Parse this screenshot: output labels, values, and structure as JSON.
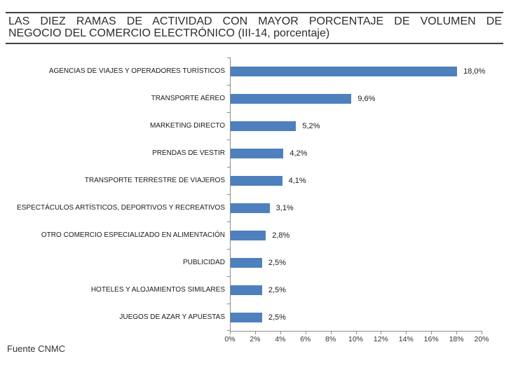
{
  "title": {
    "line1": "LAS DIEZ RAMAS DE ACTIVIDAD CON MAYOR PORCENTAJE DE VOLUMEN DE",
    "line2": "NEGOCIO DEL COMERCIO ELECTRÓNICO (III-14, porcentaje)"
  },
  "source": "Fuente CNMC",
  "chart_data": {
    "type": "bar",
    "orientation": "horizontal",
    "title": "LAS DIEZ RAMAS DE ACTIVIDAD CON MAYOR PORCENTAJE DE VOLUMEN DE NEGOCIO DEL COMERCIO ELECTRÓNICO (III-14, porcentaje)",
    "categories": [
      "AGENCIAS DE VIAJES Y OPERADORES TURÍSTICOS",
      "TRANSPORTE AÉREO",
      "MARKETING DIRECTO",
      "PRENDAS DE VESTIR",
      "TRANSPORTE TERRESTRE DE VIAJEROS",
      "ESPECTÁCULOS ARTÍSTICOS, DEPORTIVOS Y RECREATIVOS",
      "OTRO COMERCIO ESPECIALIZADO EN ALIMENTACIÓN",
      "PUBLICIDAD",
      "HOTELES  Y ALOJAMIENTOS SIMILARES",
      "JUEGOS DE AZAR Y APUESTAS"
    ],
    "values": [
      18.0,
      9.6,
      5.2,
      4.2,
      4.1,
      3.1,
      2.8,
      2.5,
      2.5,
      2.5
    ],
    "value_labels": [
      "18,0%",
      "9,6%",
      "5,2%",
      "4,2%",
      "4,1%",
      "3,1%",
      "2,8%",
      "2,5%",
      "2,5%",
      "2,5%"
    ],
    "x_ticks": [
      "0%",
      "2%",
      "4%",
      "6%",
      "8%",
      "10%",
      "12%",
      "14%",
      "16%",
      "18%",
      "20%"
    ],
    "xlim": [
      0,
      20
    ],
    "xlabel": "",
    "ylabel": "",
    "grid": false,
    "legend": false,
    "bar_color": "#4d80bd",
    "axis_color": "#8c8c8c"
  }
}
